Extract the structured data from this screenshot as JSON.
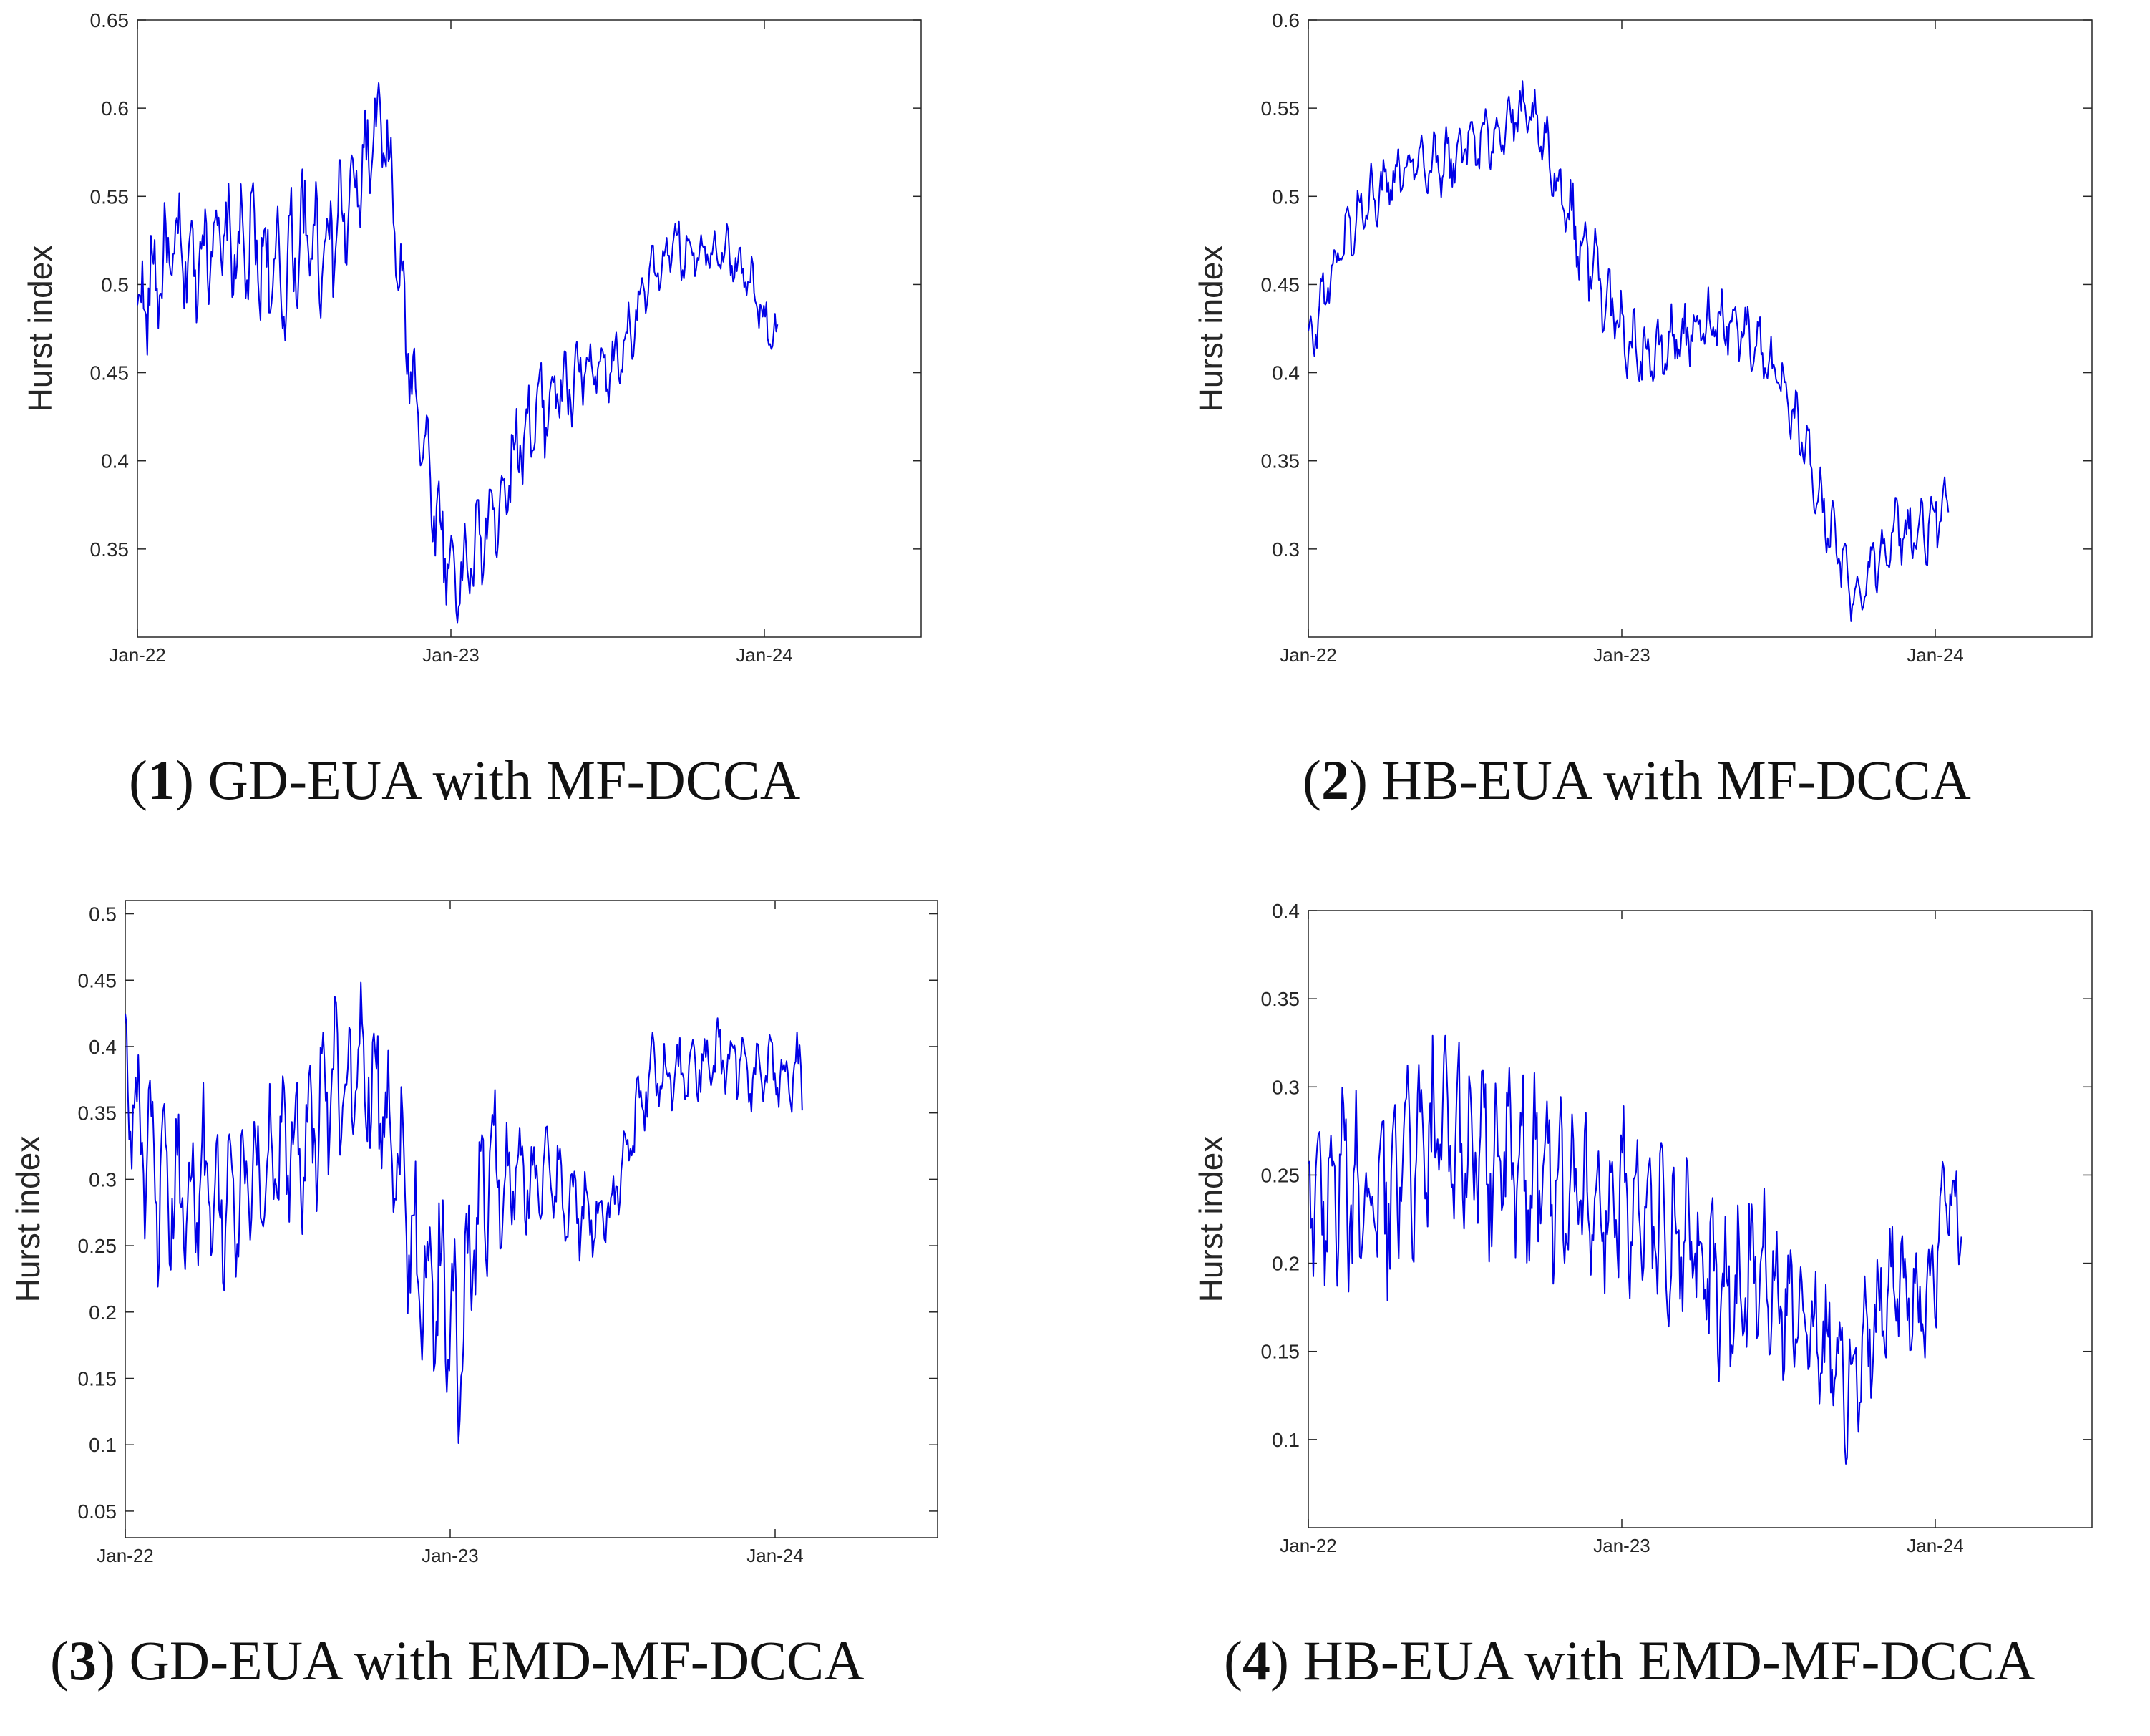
{
  "colors": {
    "line": "#0000e6",
    "axis": "#262626",
    "background": "#ffffff"
  },
  "chart_data": [
    {
      "type": "line",
      "id": "p1",
      "caption_num": "1",
      "caption_text": "GD-EUA with MF-DCCA",
      "ylabel": "Hurst index",
      "xlim": [
        0,
        30
      ],
      "ylim": [
        0.3,
        0.65
      ],
      "yticks": [
        0.35,
        0.4,
        0.45,
        0.5,
        0.55,
        0.6,
        0.65
      ],
      "ytick_labels": [
        "0.35",
        "0.4",
        "0.45",
        "0.5",
        "0.55",
        "0.6",
        "0.65"
      ],
      "xticks": [
        0,
        12,
        24
      ],
      "xtick_labels": [
        "Jan-22",
        "Jan-23",
        "Jan-24"
      ],
      "series": [
        {
          "name": "Hurst index",
          "points": [
            [
              0,
              0.48
            ],
            [
              0.5,
              0.5
            ],
            [
              1,
              0.51
            ],
            [
              1.5,
              0.52
            ],
            [
              2,
              0.51
            ],
            [
              2.5,
              0.52
            ],
            [
              3,
              0.53
            ],
            [
              3.5,
              0.52
            ],
            [
              4,
              0.52
            ],
            [
              4.5,
              0.52
            ],
            [
              5,
              0.51
            ],
            [
              5.5,
              0.5
            ],
            [
              6,
              0.52
            ],
            [
              6.5,
              0.53
            ],
            [
              7,
              0.52
            ],
            [
              7.5,
              0.53
            ],
            [
              8,
              0.54
            ],
            [
              8.5,
              0.56
            ],
            [
              9,
              0.58
            ],
            [
              9.3,
              0.59
            ],
            [
              9.6,
              0.57
            ],
            [
              10,
              0.51
            ],
            [
              10.3,
              0.47
            ],
            [
              10.6,
              0.44
            ],
            [
              11,
              0.41
            ],
            [
              11.3,
              0.38
            ],
            [
              11.6,
              0.36
            ],
            [
              12,
              0.34
            ],
            [
              12.3,
              0.33
            ],
            [
              12.6,
              0.34
            ],
            [
              13,
              0.35
            ],
            [
              13.3,
              0.36
            ],
            [
              13.6,
              0.37
            ],
            [
              14,
              0.38
            ],
            [
              14.3,
              0.4
            ],
            [
              14.6,
              0.41
            ],
            [
              15,
              0.42
            ],
            [
              15.5,
              0.43
            ],
            [
              16,
              0.44
            ],
            [
              16.5,
              0.44
            ],
            [
              17,
              0.45
            ],
            [
              17.5,
              0.45
            ],
            [
              18,
              0.45
            ],
            [
              18.5,
              0.46
            ],
            [
              19,
              0.48
            ],
            [
              19.5,
              0.5
            ],
            [
              20,
              0.51
            ],
            [
              20.5,
              0.52
            ],
            [
              21,
              0.52
            ],
            [
              21.5,
              0.52
            ],
            [
              22,
              0.52
            ],
            [
              22.5,
              0.52
            ],
            [
              23,
              0.51
            ],
            [
              23.5,
              0.5
            ],
            [
              24,
              0.48
            ],
            [
              24.5,
              0.47
            ]
          ]
        }
      ],
      "amplitudes": [
        0.035,
        0.04,
        0.035,
        0.03,
        0.03,
        0.03,
        0.02,
        0.015
      ],
      "amp_breaks": [
        0,
        4,
        8,
        10,
        12,
        14,
        17,
        21,
        25
      ]
    },
    {
      "type": "line",
      "id": "p2",
      "caption_num": "2",
      "caption_text": "HB-EUA with MF-DCCA",
      "ylabel": "Hurst index",
      "xlim": [
        0,
        30
      ],
      "ylim": [
        0.25,
        0.6
      ],
      "yticks": [
        0.3,
        0.35,
        0.4,
        0.45,
        0.5,
        0.55,
        0.6
      ],
      "ytick_labels": [
        "0.3",
        "0.35",
        "0.4",
        "0.45",
        "0.5",
        "0.55",
        "0.6"
      ],
      "xticks": [
        0,
        12,
        24
      ],
      "xtick_labels": [
        "Jan-22",
        "Jan-23",
        "Jan-24"
      ],
      "series": [
        {
          "name": "Hurst index",
          "points": [
            [
              0,
              0.41
            ],
            [
              0.5,
              0.44
            ],
            [
              1,
              0.46
            ],
            [
              1.5,
              0.48
            ],
            [
              2,
              0.49
            ],
            [
              2.5,
              0.5
            ],
            [
              3,
              0.51
            ],
            [
              3.5,
              0.515
            ],
            [
              4,
              0.52
            ],
            [
              4.5,
              0.52
            ],
            [
              5,
              0.52
            ],
            [
              5.5,
              0.52
            ],
            [
              6,
              0.53
            ],
            [
              6.5,
              0.53
            ],
            [
              7,
              0.535
            ],
            [
              7.5,
              0.54
            ],
            [
              8,
              0.545
            ],
            [
              8.5,
              0.545
            ],
            [
              9,
              0.53
            ],
            [
              9.5,
              0.51
            ],
            [
              10,
              0.49
            ],
            [
              10.5,
              0.47
            ],
            [
              11,
              0.46
            ],
            [
              11.5,
              0.44
            ],
            [
              12,
              0.42
            ],
            [
              12.5,
              0.415
            ],
            [
              13,
              0.41
            ],
            [
              13.5,
              0.41
            ],
            [
              14,
              0.42
            ],
            [
              14.5,
              0.42
            ],
            [
              15,
              0.425
            ],
            [
              15.5,
              0.43
            ],
            [
              16,
              0.43
            ],
            [
              16.5,
              0.425
            ],
            [
              17,
              0.42
            ],
            [
              17.5,
              0.41
            ],
            [
              18,
              0.395
            ],
            [
              18.5,
              0.375
            ],
            [
              19,
              0.36
            ],
            [
              19.5,
              0.33
            ],
            [
              20,
              0.31
            ],
            [
              20.5,
              0.29
            ],
            [
              21,
              0.27
            ],
            [
              21.5,
              0.29
            ],
            [
              22,
              0.3
            ],
            [
              22.5,
              0.31
            ],
            [
              23,
              0.31
            ],
            [
              23.5,
              0.31
            ],
            [
              24,
              0.315
            ],
            [
              24.5,
              0.325
            ]
          ]
        }
      ],
      "amplitudes": [
        0.02,
        0.02,
        0.02,
        0.025,
        0.02,
        0.02,
        0.02,
        0.02
      ],
      "amp_breaks": [
        0,
        4,
        8,
        10,
        12,
        14,
        17,
        21,
        25
      ]
    },
    {
      "type": "line",
      "id": "p3",
      "caption_num": "3",
      "caption_text": "GD-EUA with EMD-MF-DCCA",
      "ylabel": "Hurst index",
      "xlim": [
        0,
        30
      ],
      "ylim": [
        0.03,
        0.51
      ],
      "yticks": [
        0.05,
        0.1,
        0.15,
        0.2,
        0.25,
        0.3,
        0.35,
        0.4,
        0.45,
        0.5
      ],
      "ytick_labels": [
        "0.05",
        "0.1",
        "0.15",
        "0.2",
        "0.25",
        "0.3",
        "0.35",
        "0.4",
        "0.45",
        "0.5"
      ],
      "xticks": [
        0,
        12,
        24
      ],
      "xtick_labels": [
        "Jan-22",
        "Jan-23",
        "Jan-24"
      ],
      "series": [
        {
          "name": "Hurst index",
          "points": [
            [
              0,
              0.38
            ],
            [
              0.5,
              0.34
            ],
            [
              1,
              0.3
            ],
            [
              1.5,
              0.28
            ],
            [
              2,
              0.29
            ],
            [
              2.5,
              0.29
            ],
            [
              3,
              0.3
            ],
            [
              3.5,
              0.29
            ],
            [
              4,
              0.28
            ],
            [
              4.5,
              0.29
            ],
            [
              5,
              0.3
            ],
            [
              5.5,
              0.32
            ],
            [
              6,
              0.33
            ],
            [
              6.5,
              0.33
            ],
            [
              7,
              0.34
            ],
            [
              7.5,
              0.36
            ],
            [
              8,
              0.37
            ],
            [
              8.5,
              0.38
            ],
            [
              9,
              0.39
            ],
            [
              9.5,
              0.36
            ],
            [
              10,
              0.32
            ],
            [
              10.5,
              0.27
            ],
            [
              11,
              0.22
            ],
            [
              11.5,
              0.22
            ],
            [
              12,
              0.22
            ],
            [
              12.3,
              0.15
            ],
            [
              12.6,
              0.22
            ],
            [
              13,
              0.28
            ],
            [
              13.5,
              0.31
            ],
            [
              14,
              0.3
            ],
            [
              14.5,
              0.3
            ],
            [
              15,
              0.3
            ],
            [
              15.5,
              0.3
            ],
            [
              16,
              0.3
            ],
            [
              16.5,
              0.28
            ],
            [
              17,
              0.27
            ],
            [
              17.5,
              0.27
            ],
            [
              18,
              0.28
            ],
            [
              18.5,
              0.32
            ],
            [
              19,
              0.36
            ],
            [
              19.5,
              0.38
            ],
            [
              20,
              0.38
            ],
            [
              20.5,
              0.38
            ],
            [
              21,
              0.38
            ],
            [
              21.5,
              0.39
            ],
            [
              22,
              0.39
            ],
            [
              22.5,
              0.39
            ],
            [
              23,
              0.38
            ],
            [
              23.5,
              0.38
            ],
            [
              24,
              0.38
            ],
            [
              24.5,
              0.38
            ],
            [
              25,
              0.38
            ]
          ]
        }
      ],
      "amplitudes": [
        0.07,
        0.07,
        0.07,
        0.08,
        0.07,
        0.04,
        0.03,
        0.03
      ],
      "amp_breaks": [
        0,
        4,
        8,
        10,
        12,
        14,
        17,
        21,
        25.5
      ]
    },
    {
      "type": "line",
      "id": "p4",
      "caption_num": "4",
      "caption_text": "HB-EUA with EMD-MF-DCCA",
      "ylabel": "Hurst index",
      "xlim": [
        0,
        30
      ],
      "ylim": [
        0.05,
        0.4
      ],
      "yticks": [
        0.1,
        0.15,
        0.2,
        0.25,
        0.3,
        0.35,
        0.4
      ],
      "ytick_labels": [
        "0.1",
        "0.15",
        "0.2",
        "0.25",
        "0.3",
        "0.35",
        "0.4"
      ],
      "xticks": [
        0,
        12,
        24
      ],
      "xtick_labels": [
        "Jan-22",
        "Jan-23",
        "Jan-24"
      ],
      "series": [
        {
          "name": "Hurst index",
          "points": [
            [
              0,
              0.25
            ],
            [
              0.5,
              0.24
            ],
            [
              1,
              0.25
            ],
            [
              1.5,
              0.24
            ],
            [
              2,
              0.23
            ],
            [
              2.5,
              0.23
            ],
            [
              3,
              0.24
            ],
            [
              3.5,
              0.25
            ],
            [
              4,
              0.26
            ],
            [
              4.5,
              0.26
            ],
            [
              5,
              0.27
            ],
            [
              5.5,
              0.27
            ],
            [
              6,
              0.27
            ],
            [
              6.5,
              0.26
            ],
            [
              7,
              0.26
            ],
            [
              7.5,
              0.26
            ],
            [
              8,
              0.25
            ],
            [
              8.5,
              0.25
            ],
            [
              9,
              0.25
            ],
            [
              9.5,
              0.25
            ],
            [
              10,
              0.24
            ],
            [
              10.5,
              0.24
            ],
            [
              11,
              0.23
            ],
            [
              11.5,
              0.23
            ],
            [
              12,
              0.24
            ],
            [
              12.5,
              0.23
            ],
            [
              13,
              0.22
            ],
            [
              13.5,
              0.22
            ],
            [
              14,
              0.21
            ],
            [
              14.5,
              0.21
            ],
            [
              15,
              0.2
            ],
            [
              15.5,
              0.19
            ],
            [
              16,
              0.18
            ],
            [
              16.5,
              0.18
            ],
            [
              17,
              0.2
            ],
            [
              17.5,
              0.2
            ],
            [
              18,
              0.18
            ],
            [
              18.5,
              0.18
            ],
            [
              19,
              0.17
            ],
            [
              19.5,
              0.16
            ],
            [
              20,
              0.15
            ],
            [
              20.5,
              0.13
            ],
            [
              21,
              0.14
            ],
            [
              21.5,
              0.16
            ],
            [
              22,
              0.18
            ],
            [
              22.5,
              0.19
            ],
            [
              23,
              0.18
            ],
            [
              23.5,
              0.17
            ],
            [
              24,
              0.2
            ],
            [
              24.5,
              0.24
            ],
            [
              25,
              0.23
            ]
          ]
        }
      ],
      "amplitudes": [
        0.06,
        0.06,
        0.06,
        0.05,
        0.05,
        0.05,
        0.045,
        0.04
      ],
      "amp_breaks": [
        0,
        4,
        8,
        10,
        12,
        14,
        17,
        21,
        25.5
      ]
    }
  ]
}
